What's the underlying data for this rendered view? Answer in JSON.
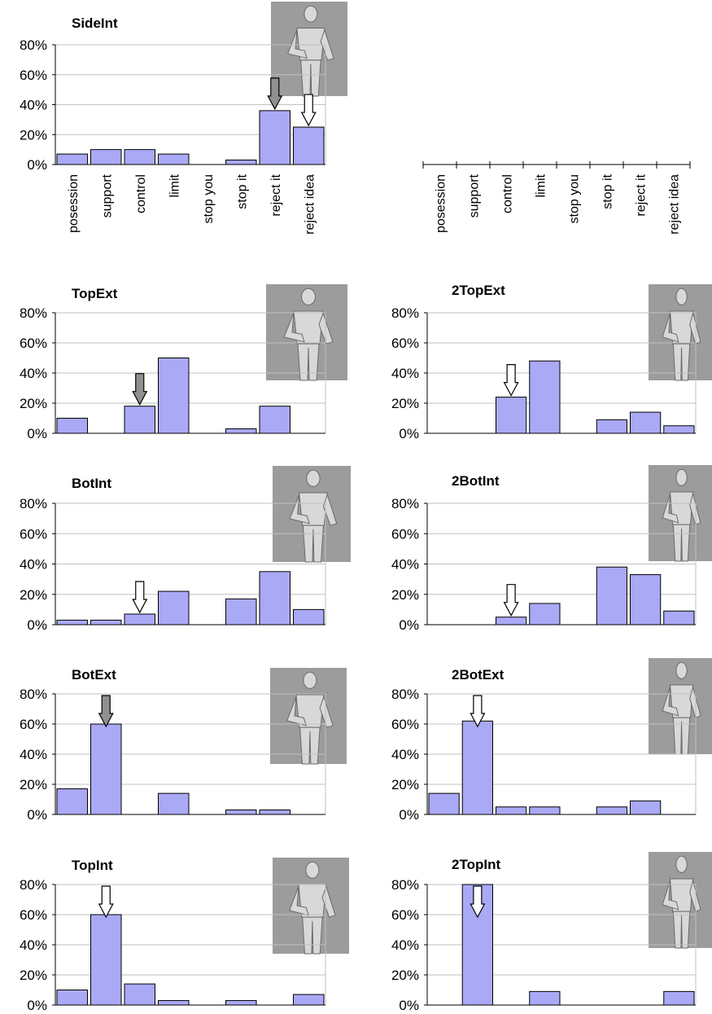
{
  "meta": {
    "categories": [
      "posession",
      "support",
      "control",
      "limit",
      "stop you",
      "stop it",
      "reject it",
      "reject idea"
    ]
  },
  "chart_data": [
    {
      "type": "bar",
      "title": "SideInt",
      "values": [
        7,
        10,
        10,
        7,
        0,
        3,
        36,
        25
      ],
      "ylim": [
        0,
        80
      ],
      "yticks": [
        "0%",
        "20%",
        "40%",
        "60%",
        "80%"
      ],
      "categories": [
        "posession",
        "support",
        "control",
        "limit",
        "stop you",
        "stop it",
        "reject it",
        "reject idea"
      ],
      "arrows": [
        {
          "category": "reject it",
          "style": "filled"
        },
        {
          "category": "reject idea",
          "style": "open"
        }
      ],
      "gridlines": true
    },
    {
      "type": "bar",
      "title": "",
      "values": null,
      "axis_only": true,
      "categories": [
        "posession",
        "support",
        "control",
        "limit",
        "stop you",
        "stop it",
        "reject it",
        "reject idea"
      ]
    },
    {
      "type": "bar",
      "title": "TopExt",
      "values": [
        10,
        0,
        18,
        50,
        0,
        3,
        18,
        0
      ],
      "ylim": [
        0,
        80
      ],
      "yticks": [
        "0%",
        "20%",
        "40%",
        "60%",
        "80%"
      ],
      "arrows": [
        {
          "category": "control",
          "style": "filled"
        }
      ],
      "gridlines": true
    },
    {
      "type": "bar",
      "title": "2TopExt",
      "values": [
        0,
        0,
        24,
        48,
        0,
        9,
        14,
        5
      ],
      "ylim": [
        0,
        80
      ],
      "yticks": [
        "0%",
        "20%",
        "40%",
        "60%",
        "80%"
      ],
      "arrows": [
        {
          "category": "control",
          "style": "open"
        }
      ],
      "gridlines": true
    },
    {
      "type": "bar",
      "title": "BotInt",
      "values": [
        3,
        3,
        7,
        22,
        0,
        17,
        35,
        10
      ],
      "ylim": [
        0,
        80
      ],
      "yticks": [
        "0%",
        "20%",
        "40%",
        "60%",
        "80%"
      ],
      "arrows": [
        {
          "category": "control",
          "style": "open"
        }
      ],
      "gridlines": true
    },
    {
      "type": "bar",
      "title": "2BotInt",
      "values": [
        0,
        0,
        5,
        14,
        0,
        38,
        33,
        9
      ],
      "ylim": [
        0,
        80
      ],
      "yticks": [
        "0%",
        "20%",
        "40%",
        "60%",
        "80%"
      ],
      "arrows": [
        {
          "category": "control",
          "style": "open"
        }
      ],
      "gridlines": true
    },
    {
      "type": "bar",
      "title": "BotExt",
      "values": [
        17,
        60,
        0,
        14,
        0,
        3,
        3,
        0
      ],
      "ylim": [
        0,
        80
      ],
      "yticks": [
        "0%",
        "20%",
        "40%",
        "60%",
        "80%"
      ],
      "arrows": [
        {
          "category": "support",
          "style": "filled"
        }
      ],
      "gridlines": true
    },
    {
      "type": "bar",
      "title": "2BotExt",
      "values": [
        14,
        62,
        5,
        5,
        0,
        5,
        9,
        0
      ],
      "ylim": [
        0,
        80
      ],
      "yticks": [
        "0%",
        "20%",
        "40%",
        "60%",
        "80%"
      ],
      "arrows": [
        {
          "category": "support",
          "style": "open"
        }
      ],
      "gridlines": true
    },
    {
      "type": "bar",
      "title": "TopInt",
      "values": [
        10,
        60,
        14,
        3,
        0,
        3,
        0,
        7
      ],
      "ylim": [
        0,
        80
      ],
      "yticks": [
        "0%",
        "20%",
        "40%",
        "60%",
        "80%"
      ],
      "arrows": [
        {
          "category": "support",
          "style": "open"
        }
      ],
      "gridlines": true
    },
    {
      "type": "bar",
      "title": "2TopInt",
      "values": [
        0,
        80,
        0,
        9,
        0,
        0,
        0,
        9
      ],
      "ylim": [
        0,
        80
      ],
      "yticks": [
        "0%",
        "20%",
        "40%",
        "60%",
        "80%"
      ],
      "arrows": [
        {
          "category": "support",
          "style": "open"
        }
      ],
      "gridlines": true
    }
  ],
  "colors": {
    "bar_fill": "#a9a9f5",
    "bar_stroke": "#000000",
    "grid": "#c0c0c0",
    "arrow_filled": "#909090",
    "arrow_open": "#ffffff",
    "figure_bg": "#9c9c9c",
    "figure_body": "#d8d8d8"
  },
  "icons": {
    "figure": "human-gesture-figure-icon",
    "arrow": "down-arrow-icon"
  }
}
